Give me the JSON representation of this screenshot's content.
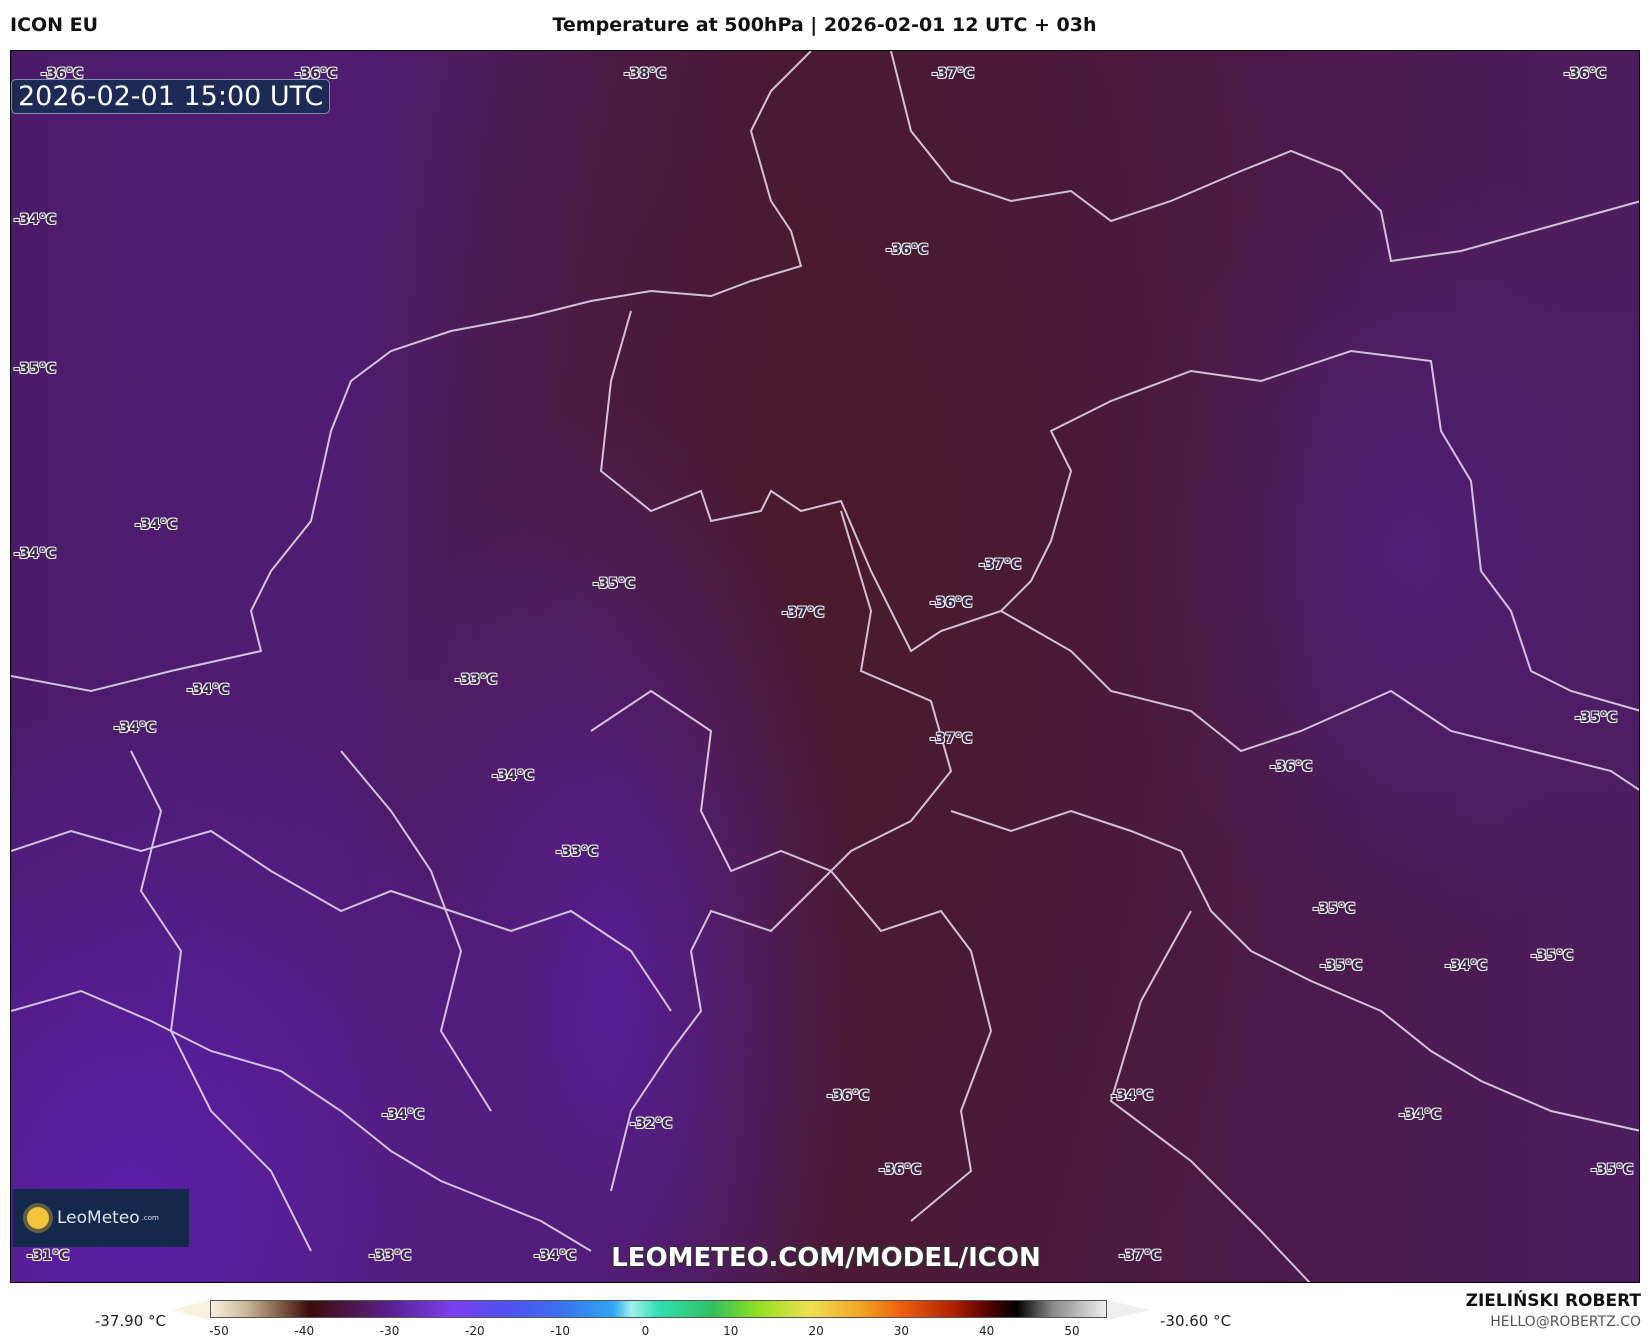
{
  "header": {
    "model": "ICON EU",
    "title": "Temperature at 500hPa | 2026-02-01 12 UTC + 03h"
  },
  "map": {
    "valid_time": "2026-02-01 15:00 UTC",
    "watermark": "LEOMETEO.COM/MODEL/ICON",
    "logo": {
      "name": "LeoMeteo",
      "suffix": ".com"
    },
    "labels": [
      "-36°C",
      "-36°C",
      "-38°C",
      "-37°C",
      "-36°C",
      "-34°C",
      "-36°C",
      "-35°C",
      "-34°C",
      "-34°C",
      "-35°C",
      "-37°C",
      "-37°C",
      "-36°C",
      "-34°C",
      "-33°C",
      "-34°C",
      "-35°C",
      "-37°C",
      "-34°C",
      "-36°C",
      "-33°C",
      "-35°C",
      "-35°C",
      "-34°C",
      "-35°C",
      "-36°C",
      "-34°C",
      "-34°C",
      "-32°C",
      "-34°C",
      "-36°C",
      "-35°C",
      "-31°C",
      "-33°C",
      "-34°C",
      "-37°C"
    ]
  },
  "legend": {
    "min": "-37.90 °C",
    "max": "-30.60 °C",
    "ticks": [
      "-50",
      "-40",
      "-30",
      "-20",
      "-10",
      "0",
      "10",
      "20",
      "30",
      "40",
      "50"
    ]
  },
  "footer": {
    "author": "ZIELIŃSKI ROBERT",
    "email": "HELLO@ROBERTZ.CO"
  }
}
